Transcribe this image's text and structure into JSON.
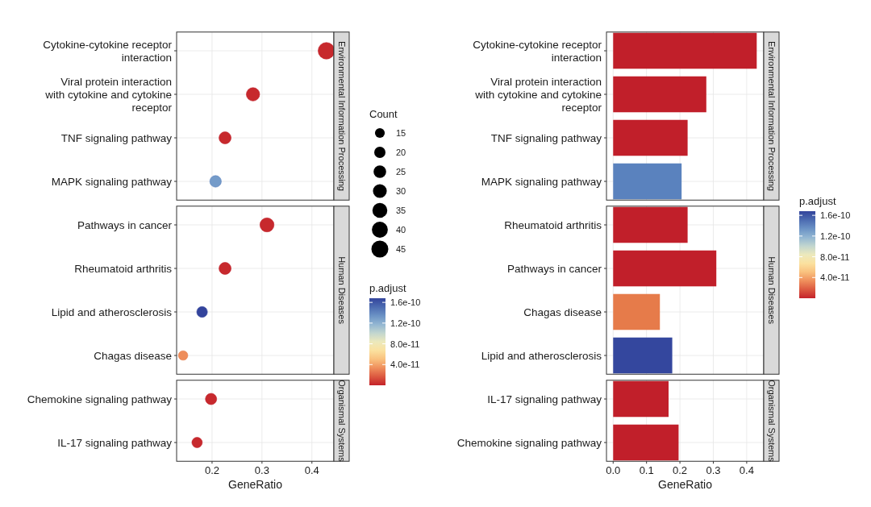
{
  "chart_data": [
    {
      "type": "bubble",
      "orientation": "horizontal",
      "categories": [
        "Cytokine-cytokine receptor\ninteraction",
        "Viral protein interaction\nwith cytokine and cytokine\nreceptor",
        "TNF signaling pathway",
        "MAPK signaling pathway",
        "Pathways in cancer",
        "Rheumatoid arthritis",
        "Lipid and atherosclerosis",
        "Chagas disease",
        "Chemokine signaling pathway",
        "IL-17 signaling pathway"
      ],
      "series": [
        {
          "name": "Environmental Information Processing",
          "values": [
            0.429,
            0.282,
            0.226,
            0.207,
            null,
            null,
            null,
            null,
            null,
            null
          ],
          "sizes": [
            43,
            28,
            23,
            21,
            null,
            null,
            null,
            null,
            null,
            null
          ],
          "colors": [
            "#c11f2a",
            "#c11f2a",
            "#c11f2a",
            "#5a82be",
            null,
            null,
            null,
            null,
            null,
            null
          ],
          "cvalues": [
            2e-12,
            2e-12,
            2e-12,
            1.3e-10,
            null,
            null,
            null,
            null,
            null,
            null
          ]
        },
        {
          "name": "Human Diseases",
          "values": [
            null,
            null,
            null,
            null,
            0.31,
            0.226,
            0.18,
            0.142,
            null,
            null
          ],
          "sizes": [
            null,
            null,
            null,
            null,
            31,
            23,
            18,
            14,
            null,
            null
          ],
          "colors": [
            null,
            null,
            null,
            null,
            "#c11f2a",
            "#c11f2a",
            "#34479e",
            "#e67b4a",
            null,
            null
          ],
          "cvalues": [
            null,
            null,
            null,
            null,
            2e-12,
            2e-12,
            1.68e-10,
            3.3e-11,
            null,
            null
          ]
        },
        {
          "name": "Organismal Systems",
          "values": [
            null,
            null,
            null,
            null,
            null,
            null,
            null,
            null,
            0.198,
            0.17
          ],
          "sizes": [
            null,
            null,
            null,
            null,
            null,
            null,
            null,
            null,
            20,
            17
          ],
          "colors": [
            null,
            null,
            null,
            null,
            null,
            null,
            null,
            null,
            "#c11f2a",
            "#c11f2a"
          ],
          "cvalues": [
            null,
            null,
            null,
            null,
            null,
            null,
            null,
            null,
            2e-12,
            2e-12
          ]
        }
      ],
      "xlim": [
        0.129,
        0.444
      ],
      "xticks": [
        0.2,
        0.3,
        0.4
      ],
      "xlabel": "GeneRatio",
      "grid": true,
      "legend_title": "Count",
      "size_legend": [
        15,
        20,
        25,
        30,
        35,
        40,
        45
      ],
      "clabel": "p.adjust",
      "clim": [
        0,
        1.68e-10
      ],
      "cticks": [
        {
          "value": 4e-11,
          "label": "4.0e-11"
        },
        {
          "value": 8e-11,
          "label": "8.0e-11"
        },
        {
          "value": 1.2e-10,
          "label": "1.2e-10"
        },
        {
          "value": 1.6e-10,
          "label": "1.6e-10"
        }
      ]
    },
    {
      "type": "bar",
      "orientation": "horizontal",
      "categories": [
        "Cytokine-cytokine receptor\ninteraction",
        "Viral protein interaction\nwith cytokine and cytokine\nreceptor",
        "TNF signaling pathway",
        "MAPK signaling pathway",
        "Rheumatoid arthritis",
        "Pathways in cancer",
        "Chagas disease",
        "Lipid and atherosclerosis",
        "IL-17 signaling pathway",
        "Chemokine signaling pathway"
      ],
      "series": [
        {
          "name": "Environmental Information Processing",
          "values": [
            0.43,
            0.279,
            0.223,
            0.205,
            null,
            null,
            null,
            null,
            null,
            null
          ],
          "colors": [
            "#c11f2a",
            "#c11f2a",
            "#c11f2a",
            "#5a82be",
            null,
            null,
            null,
            null,
            null,
            null
          ]
        },
        {
          "name": "Human Diseases",
          "values": [
            null,
            null,
            null,
            null,
            0.223,
            0.309,
            0.14,
            0.177,
            null,
            null
          ],
          "colors": [
            null,
            null,
            null,
            null,
            "#c11f2a",
            "#c11f2a",
            "#e67b4a",
            "#34479e",
            null,
            null
          ]
        },
        {
          "name": "Organismal Systems",
          "values": [
            null,
            null,
            null,
            null,
            null,
            null,
            null,
            null,
            0.166,
            0.196
          ],
          "colors": [
            null,
            null,
            null,
            null,
            null,
            null,
            null,
            null,
            "#c11f2a",
            "#c11f2a"
          ]
        }
      ],
      "xlim": [
        -0.02,
        0.451
      ],
      "xticks": [
        {
          "value": 0,
          "label": "0.0"
        },
        0.1,
        0.2,
        0.3,
        0.4
      ],
      "xlabel": "GeneRatio",
      "grid": true,
      "clabel": "p.adjust",
      "clim": [
        0,
        1.68e-10
      ],
      "cticks": [
        {
          "value": 4e-11,
          "label": "4.0e-11"
        },
        {
          "value": 8e-11,
          "label": "8.0e-11"
        },
        {
          "value": 1.2e-10,
          "label": "1.2e-10"
        },
        {
          "value": 1.6e-10,
          "label": "1.6e-10"
        }
      ]
    }
  ]
}
